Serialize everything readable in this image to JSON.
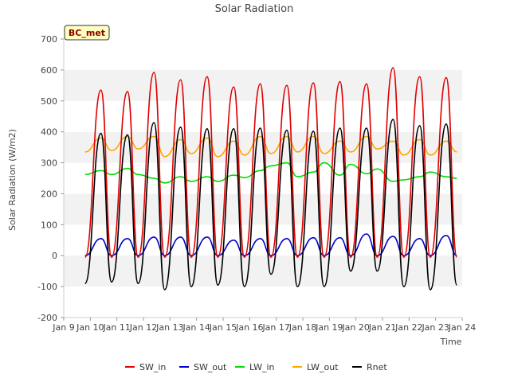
{
  "chart_data": {
    "type": "line",
    "title": "Solar Radiation",
    "xlabel": "Time",
    "ylabel": "Solar Radiation (W/m2)",
    "badge": "BC_met",
    "xlim": [
      9,
      24
    ],
    "ylim": [
      -200,
      700
    ],
    "x_ticks": [
      {
        "value": 9,
        "label": "Jan 9"
      },
      {
        "value": 10,
        "label": "Jan 10"
      },
      {
        "value": 11,
        "label": "Jan 11"
      },
      {
        "value": 12,
        "label": "Jan 12"
      },
      {
        "value": 13,
        "label": "Jan 13"
      },
      {
        "value": 14,
        "label": "Jan 14"
      },
      {
        "value": 15,
        "label": "Jan 15"
      },
      {
        "value": 16,
        "label": "Jan 16"
      },
      {
        "value": 17,
        "label": "Jan 17"
      },
      {
        "value": 18,
        "label": "Jan 18"
      },
      {
        "value": 19,
        "label": "Jan 19"
      },
      {
        "value": 20,
        "label": "Jan 20"
      },
      {
        "value": 21,
        "label": "Jan 21"
      },
      {
        "value": 22,
        "label": "Jan 22"
      },
      {
        "value": 23,
        "label": "Jan 23"
      },
      {
        "value": 24,
        "label": "Jan 24"
      }
    ],
    "y_ticks": [
      -200,
      -100,
      0,
      100,
      200,
      300,
      400,
      500,
      600,
      700
    ],
    "grid": "horizontal alternating bands",
    "legend_position": "bottom",
    "series": [
      {
        "name": "SW_in",
        "color": "#e00000"
      },
      {
        "name": "SW_out",
        "color": "#0000cc"
      },
      {
        "name": "LW_in",
        "color": "#00dd00"
      },
      {
        "name": "LW_out",
        "color": "#ffa500"
      },
      {
        "name": "Rnet",
        "color": "#000000"
      }
    ],
    "days": [
      {
        "x": 9.8,
        "sw_in": -5,
        "sw_out": 0,
        "lw_in": 262,
        "lw_out": 335,
        "rnet": -90
      },
      {
        "x": 10.4,
        "sw_in": 535,
        "sw_out": 55,
        "lw_in": 275,
        "lw_out": 380,
        "rnet": 395
      },
      {
        "x": 10.8,
        "sw_in": -5,
        "sw_out": 0,
        "lw_in": 262,
        "lw_out": 340,
        "rnet": -85
      },
      {
        "x": 11.4,
        "sw_in": 530,
        "sw_out": 55,
        "lw_in": 282,
        "lw_out": 385,
        "rnet": 390
      },
      {
        "x": 11.8,
        "sw_in": -5,
        "sw_out": 0,
        "lw_in": 262,
        "lw_out": 345,
        "rnet": -90
      },
      {
        "x": 12.4,
        "sw_in": 592,
        "sw_out": 60,
        "lw_in": 250,
        "lw_out": 385,
        "rnet": 430
      },
      {
        "x": 12.8,
        "sw_in": -5,
        "sw_out": 0,
        "lw_in": 235,
        "lw_out": 320,
        "rnet": -110
      },
      {
        "x": 13.4,
        "sw_in": 568,
        "sw_out": 60,
        "lw_in": 255,
        "lw_out": 375,
        "rnet": 415
      },
      {
        "x": 13.8,
        "sw_in": -5,
        "sw_out": 0,
        "lw_in": 240,
        "lw_out": 330,
        "rnet": -100
      },
      {
        "x": 14.4,
        "sw_in": 578,
        "sw_out": 60,
        "lw_in": 255,
        "lw_out": 380,
        "rnet": 410
      },
      {
        "x": 14.8,
        "sw_in": -5,
        "sw_out": 0,
        "lw_in": 240,
        "lw_out": 320,
        "rnet": -95
      },
      {
        "x": 15.4,
        "sw_in": 545,
        "sw_out": 50,
        "lw_in": 260,
        "lw_out": 370,
        "rnet": 410
      },
      {
        "x": 15.8,
        "sw_in": -5,
        "sw_out": 0,
        "lw_in": 252,
        "lw_out": 325,
        "rnet": -100
      },
      {
        "x": 16.4,
        "sw_in": 555,
        "sw_out": 55,
        "lw_in": 275,
        "lw_out": 385,
        "rnet": 412
      },
      {
        "x": 16.8,
        "sw_in": -5,
        "sw_out": 0,
        "lw_in": 290,
        "lw_out": 330,
        "rnet": -60
      },
      {
        "x": 17.4,
        "sw_in": 550,
        "sw_out": 55,
        "lw_in": 300,
        "lw_out": 385,
        "rnet": 405
      },
      {
        "x": 17.8,
        "sw_in": -5,
        "sw_out": 0,
        "lw_in": 255,
        "lw_out": 335,
        "rnet": -100
      },
      {
        "x": 18.4,
        "sw_in": 558,
        "sw_out": 58,
        "lw_in": 270,
        "lw_out": 385,
        "rnet": 402
      },
      {
        "x": 18.8,
        "sw_in": -5,
        "sw_out": 0,
        "lw_in": 300,
        "lw_out": 330,
        "rnet": -100
      },
      {
        "x": 19.4,
        "sw_in": 562,
        "sw_out": 58,
        "lw_in": 260,
        "lw_out": 370,
        "rnet": 412
      },
      {
        "x": 19.8,
        "sw_in": -5,
        "sw_out": 0,
        "lw_in": 295,
        "lw_out": 335,
        "rnet": -50
      },
      {
        "x": 20.4,
        "sw_in": 555,
        "sw_out": 70,
        "lw_in": 265,
        "lw_out": 385,
        "rnet": 412
      },
      {
        "x": 20.8,
        "sw_in": -5,
        "sw_out": 0,
        "lw_in": 280,
        "lw_out": 345,
        "rnet": -50
      },
      {
        "x": 21.4,
        "sw_in": 607,
        "sw_out": 62,
        "lw_in": 240,
        "lw_out": 370,
        "rnet": 440
      },
      {
        "x": 21.8,
        "sw_in": -5,
        "sw_out": 0,
        "lw_in": 245,
        "lw_out": 325,
        "rnet": -100
      },
      {
        "x": 22.4,
        "sw_in": 578,
        "sw_out": 55,
        "lw_in": 255,
        "lw_out": 375,
        "rnet": 420
      },
      {
        "x": 22.8,
        "sw_in": -5,
        "sw_out": 0,
        "lw_in": 270,
        "lw_out": 325,
        "rnet": -110
      },
      {
        "x": 23.4,
        "sw_in": 575,
        "sw_out": 65,
        "lw_in": 255,
        "lw_out": 370,
        "rnet": 425
      },
      {
        "x": 23.8,
        "sw_in": -5,
        "sw_out": 0,
        "lw_in": 250,
        "lw_out": 335,
        "rnet": -95
      }
    ]
  }
}
